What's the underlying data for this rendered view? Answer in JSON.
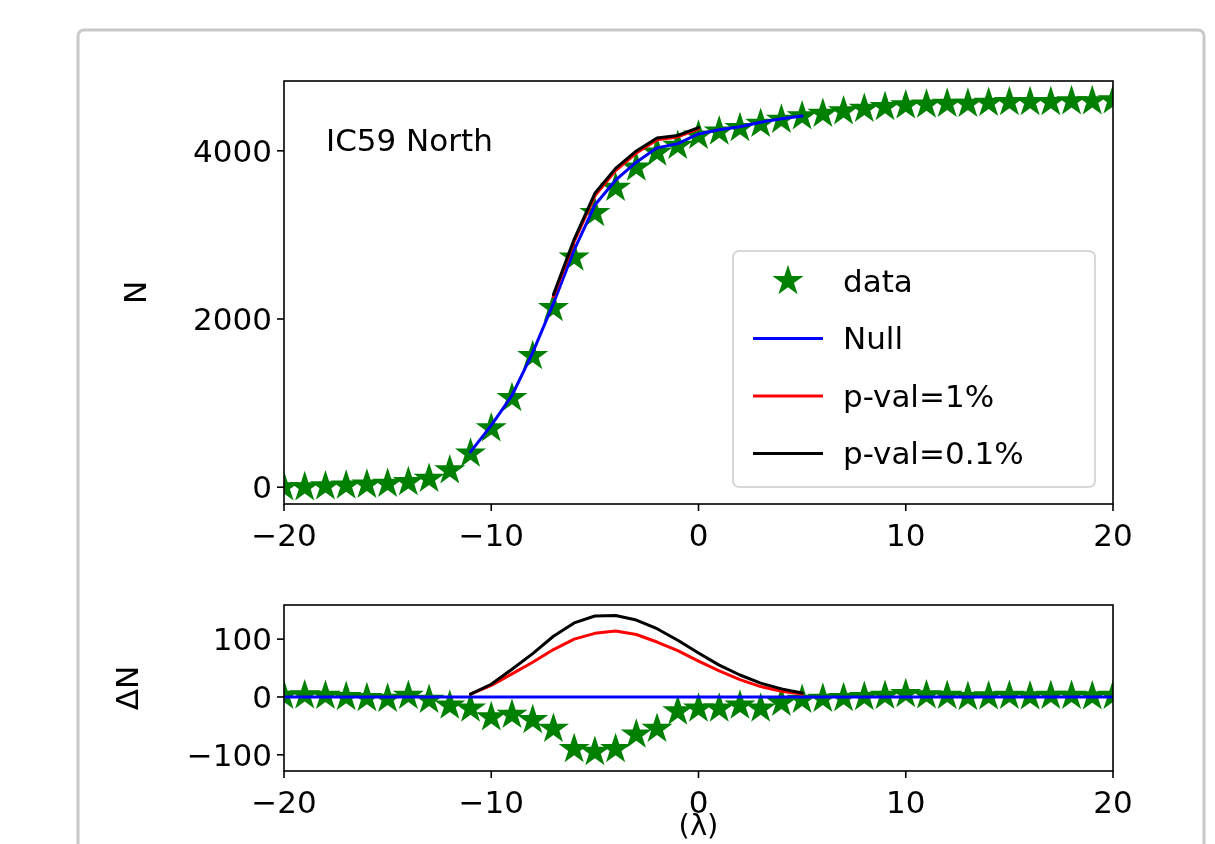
{
  "chart_data": [
    {
      "type": "line",
      "ylabel": "N",
      "annotations": [
        "IC59 North"
      ],
      "x": [
        -20,
        -19,
        -18,
        -17,
        -16,
        -15,
        -14,
        -13,
        -12,
        -11,
        -10,
        -9,
        -8,
        -7,
        -6,
        -5,
        -4,
        -3,
        -2,
        -1,
        0,
        1,
        2,
        3,
        4,
        5,
        6,
        7,
        8,
        9,
        10,
        11,
        12,
        13,
        14,
        15,
        16,
        17,
        18,
        19,
        20
      ],
      "xlim": [
        -20,
        20
      ],
      "xticks": [
        -20,
        -10,
        0,
        10,
        20
      ],
      "ylim": [
        -200,
        4830
      ],
      "yticks": [
        0,
        2000,
        4000
      ],
      "legend": "lower right",
      "grid": false,
      "series": [
        {
          "name": "data",
          "type": "scatter",
          "marker": "star",
          "color": "#008000",
          "values": [
            0,
            0,
            10,
            20,
            30,
            40,
            60,
            100,
            200,
            400,
            700,
            1060,
            1560,
            2130,
            2730,
            3260,
            3560,
            3800,
            3980,
            4060,
            4180,
            4230,
            4270,
            4320,
            4370,
            4410,
            4440,
            4470,
            4500,
            4520,
            4540,
            4550,
            4560,
            4560,
            4570,
            4580,
            4580,
            4580,
            4590,
            4590,
            4600
          ]
        },
        {
          "name": "Null",
          "color": "#0000ff",
          "values": [
            null,
            null,
            null,
            null,
            null,
            null,
            null,
            null,
            null,
            420,
            735,
            1090,
            1600,
            2185,
            2820,
            3355,
            3650,
            3865,
            4035,
            4085,
            4200,
            4250,
            4285,
            4340,
            4380,
            4415,
            null,
            null,
            null,
            null,
            null,
            null,
            null,
            null,
            null,
            null,
            null,
            null,
            null,
            null,
            null
          ]
        },
        {
          "name": "p-val=1%",
          "color": "#ff0000",
          "values": [
            null,
            null,
            null,
            null,
            null,
            null,
            null,
            null,
            null,
            null,
            null,
            null,
            null,
            2267,
            2920,
            3465,
            3764,
            3973,
            4130,
            4165,
            4262,
            null,
            null,
            null,
            null,
            null,
            null,
            null,
            null,
            null,
            null,
            null,
            null,
            null,
            null,
            null,
            null,
            null,
            null,
            null,
            null
          ]
        },
        {
          "name": "p-val=0.1%",
          "color": "#000000",
          "values": [
            null,
            null,
            null,
            null,
            null,
            null,
            null,
            null,
            null,
            null,
            null,
            null,
            null,
            2290,
            2948,
            3495,
            3791,
            3998,
            4153,
            4183,
            4276,
            null,
            null,
            null,
            null,
            null,
            null,
            null,
            null,
            null,
            null,
            null,
            null,
            null,
            null,
            null,
            null,
            null,
            null,
            null,
            null
          ]
        }
      ]
    },
    {
      "type": "line",
      "ylabel": "ΔN",
      "xlabel": "(λ)",
      "x": [
        -20,
        -19,
        -18,
        -17,
        -16,
        -15,
        -14,
        -13,
        -12,
        -11,
        -10,
        -9,
        -8,
        -7,
        -6,
        -5,
        -4,
        -3,
        -2,
        -1,
        0,
        1,
        2,
        3,
        4,
        5,
        6,
        7,
        8,
        9,
        10,
        11,
        12,
        13,
        14,
        15,
        16,
        17,
        18,
        19,
        20
      ],
      "xlim": [
        -20,
        20
      ],
      "xticks": [
        -20,
        -10,
        0,
        10,
        20
      ],
      "ylim": [
        -128,
        159
      ],
      "yticks": [
        -100,
        0,
        100
      ],
      "grid": false,
      "series": [
        {
          "type": "scatter",
          "marker": "star",
          "color": "#008000",
          "values": [
            2,
            3,
            2,
            0,
            -2,
            -3,
            2,
            -5,
            -15,
            -20,
            -35,
            -31,
            -40,
            -55,
            -90,
            -95,
            -90,
            -65,
            -55,
            -25,
            -20,
            -20,
            -15,
            -20,
            -10,
            -5,
            -3,
            -2,
            0,
            2,
            5,
            3,
            2,
            0,
            1,
            2,
            1,
            2,
            2,
            1,
            2
          ]
        },
        {
          "color": "#0000ff",
          "values": [
            0,
            0,
            0,
            0,
            0,
            0,
            0,
            0,
            0,
            0,
            0,
            0,
            0,
            0,
            0,
            0,
            0,
            0,
            0,
            0,
            0,
            0,
            0,
            0,
            0,
            0,
            0,
            0,
            0,
            0,
            0,
            0,
            0,
            0,
            0,
            0,
            0,
            0,
            0,
            0,
            0
          ]
        },
        {
          "color": "#ff0000",
          "values": [
            null,
            null,
            null,
            null,
            null,
            null,
            null,
            null,
            null,
            5,
            20,
            40,
            60,
            82,
            100,
            110,
            114,
            108,
            95,
            80,
            62,
            45,
            30,
            18,
            10,
            5,
            null,
            null,
            null,
            null,
            null,
            null,
            null,
            null,
            null,
            null,
            null,
            null,
            null,
            null,
            null
          ]
        },
        {
          "color": "#000000",
          "values": [
            null,
            null,
            null,
            null,
            null,
            null,
            null,
            null,
            null,
            5,
            22,
            48,
            75,
            105,
            128,
            140,
            141,
            133,
            118,
            98,
            76,
            55,
            38,
            24,
            14,
            7,
            null,
            null,
            null,
            null,
            null,
            null,
            null,
            null,
            null,
            null,
            null,
            null,
            null,
            null,
            null
          ]
        }
      ]
    }
  ]
}
